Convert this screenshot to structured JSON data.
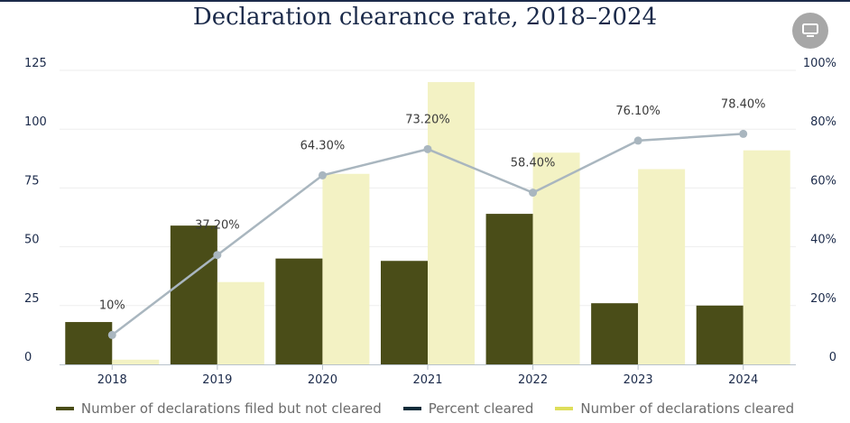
{
  "title": "Declaration clearance rate, 2018–2024",
  "colors": {
    "not_cleared": "#4a4d18",
    "cleared": "#f3f2c4",
    "line": "#a9b6bf",
    "legend_percent": "#0f2c3a",
    "legend_cleared": "#dede5a"
  },
  "chart_data": {
    "type": "bar",
    "title": "Declaration clearance rate, 2018–2024",
    "categories": [
      "2018",
      "2019",
      "2020",
      "2021",
      "2022",
      "2023",
      "2024"
    ],
    "series": [
      {
        "name": "Number of declarations filed but not cleared",
        "type": "bar",
        "axis": "left",
        "values": [
          18,
          59,
          45,
          44,
          64,
          26,
          25
        ]
      },
      {
        "name": "Percent cleared",
        "type": "line",
        "axis": "right",
        "values": [
          10,
          37.2,
          64.3,
          73.2,
          58.4,
          76.1,
          78.4
        ],
        "labels": [
          "10%",
          "37.20%",
          "64.30%",
          "73.20%",
          "58.40%",
          "76.10%",
          "78.40%"
        ]
      },
      {
        "name": "Number of declarations cleared",
        "type": "bar",
        "axis": "left",
        "values": [
          2,
          35,
          81,
          120,
          90,
          83,
          91
        ]
      }
    ],
    "y_left": {
      "ylim": [
        0,
        125
      ],
      "ticks": [
        "0",
        "25",
        "50",
        "75",
        "100",
        "125"
      ]
    },
    "y_right": {
      "ylim": [
        0,
        100
      ],
      "ticks": [
        "0",
        "20%",
        "40%",
        "60%",
        "80%",
        "100%"
      ]
    },
    "grid": true,
    "legend": "bottom-center"
  }
}
